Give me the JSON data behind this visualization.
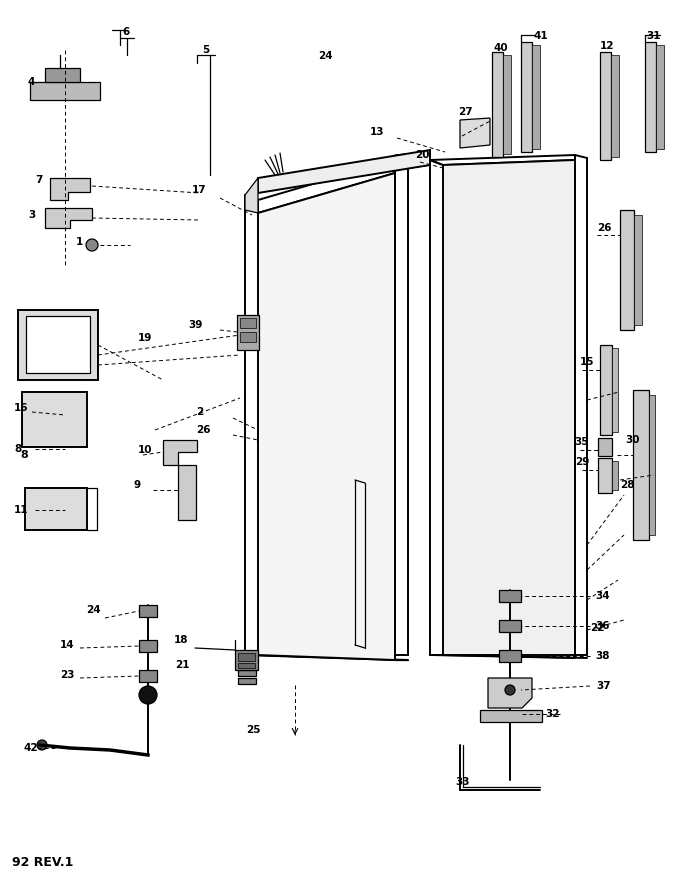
{
  "footer": "92 REV.1",
  "bg_color": "#ffffff",
  "fig_width": 6.8,
  "fig_height": 8.81,
  "dpi": 100
}
